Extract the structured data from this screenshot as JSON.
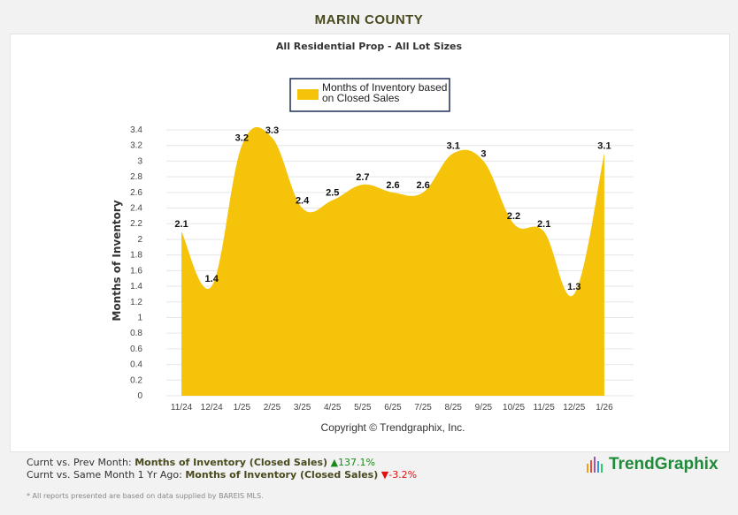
{
  "header": {
    "title": "MARIN COUNTY"
  },
  "chart_data": {
    "type": "area",
    "title": "All Residential Prop - All Lot Sizes",
    "ylabel": "Months of Inventory",
    "xlabel": "",
    "categories": [
      "11/24",
      "12/24",
      "1/25",
      "2/25",
      "3/25",
      "4/25",
      "5/25",
      "6/25",
      "7/25",
      "8/25",
      "9/25",
      "10/25",
      "11/25",
      "12/25",
      "1/26"
    ],
    "series": [
      {
        "name": "Months of Inventory based on Closed Sales",
        "values": [
          2.1,
          1.4,
          3.2,
          3.3,
          2.4,
          2.5,
          2.7,
          2.6,
          2.6,
          3.1,
          3,
          2.2,
          2.1,
          1.3,
          3.1
        ]
      }
    ],
    "legend_lines": [
      "Months of Inventory based",
      "on Closed Sales"
    ],
    "ylim": [
      0,
      3.4
    ],
    "yticks": [
      0,
      0.2,
      0.4,
      0.6,
      0.8,
      1,
      1.2,
      1.4,
      1.6,
      1.8,
      2,
      2.2,
      2.4,
      2.6,
      2.8,
      3,
      3.2,
      3.4
    ],
    "grid": true,
    "legend_placement": "top-center",
    "color": "#f5c30a",
    "credit": "Copyright © Trendgraphix, Inc."
  },
  "footer": {
    "row1_label": "Curnt vs. Prev Month:",
    "row1_metric": "Months of Inventory (Closed Sales)",
    "row1_change": "137.1%",
    "row2_label": "Curnt vs. Same Month 1 Yr Ago:",
    "row2_metric": "Months of Inventory (Closed Sales)",
    "row2_change": "-3.2%",
    "note": "* All reports presented are based on data supplied by BAREIS MLS.",
    "logo": "TrendGraphix"
  }
}
